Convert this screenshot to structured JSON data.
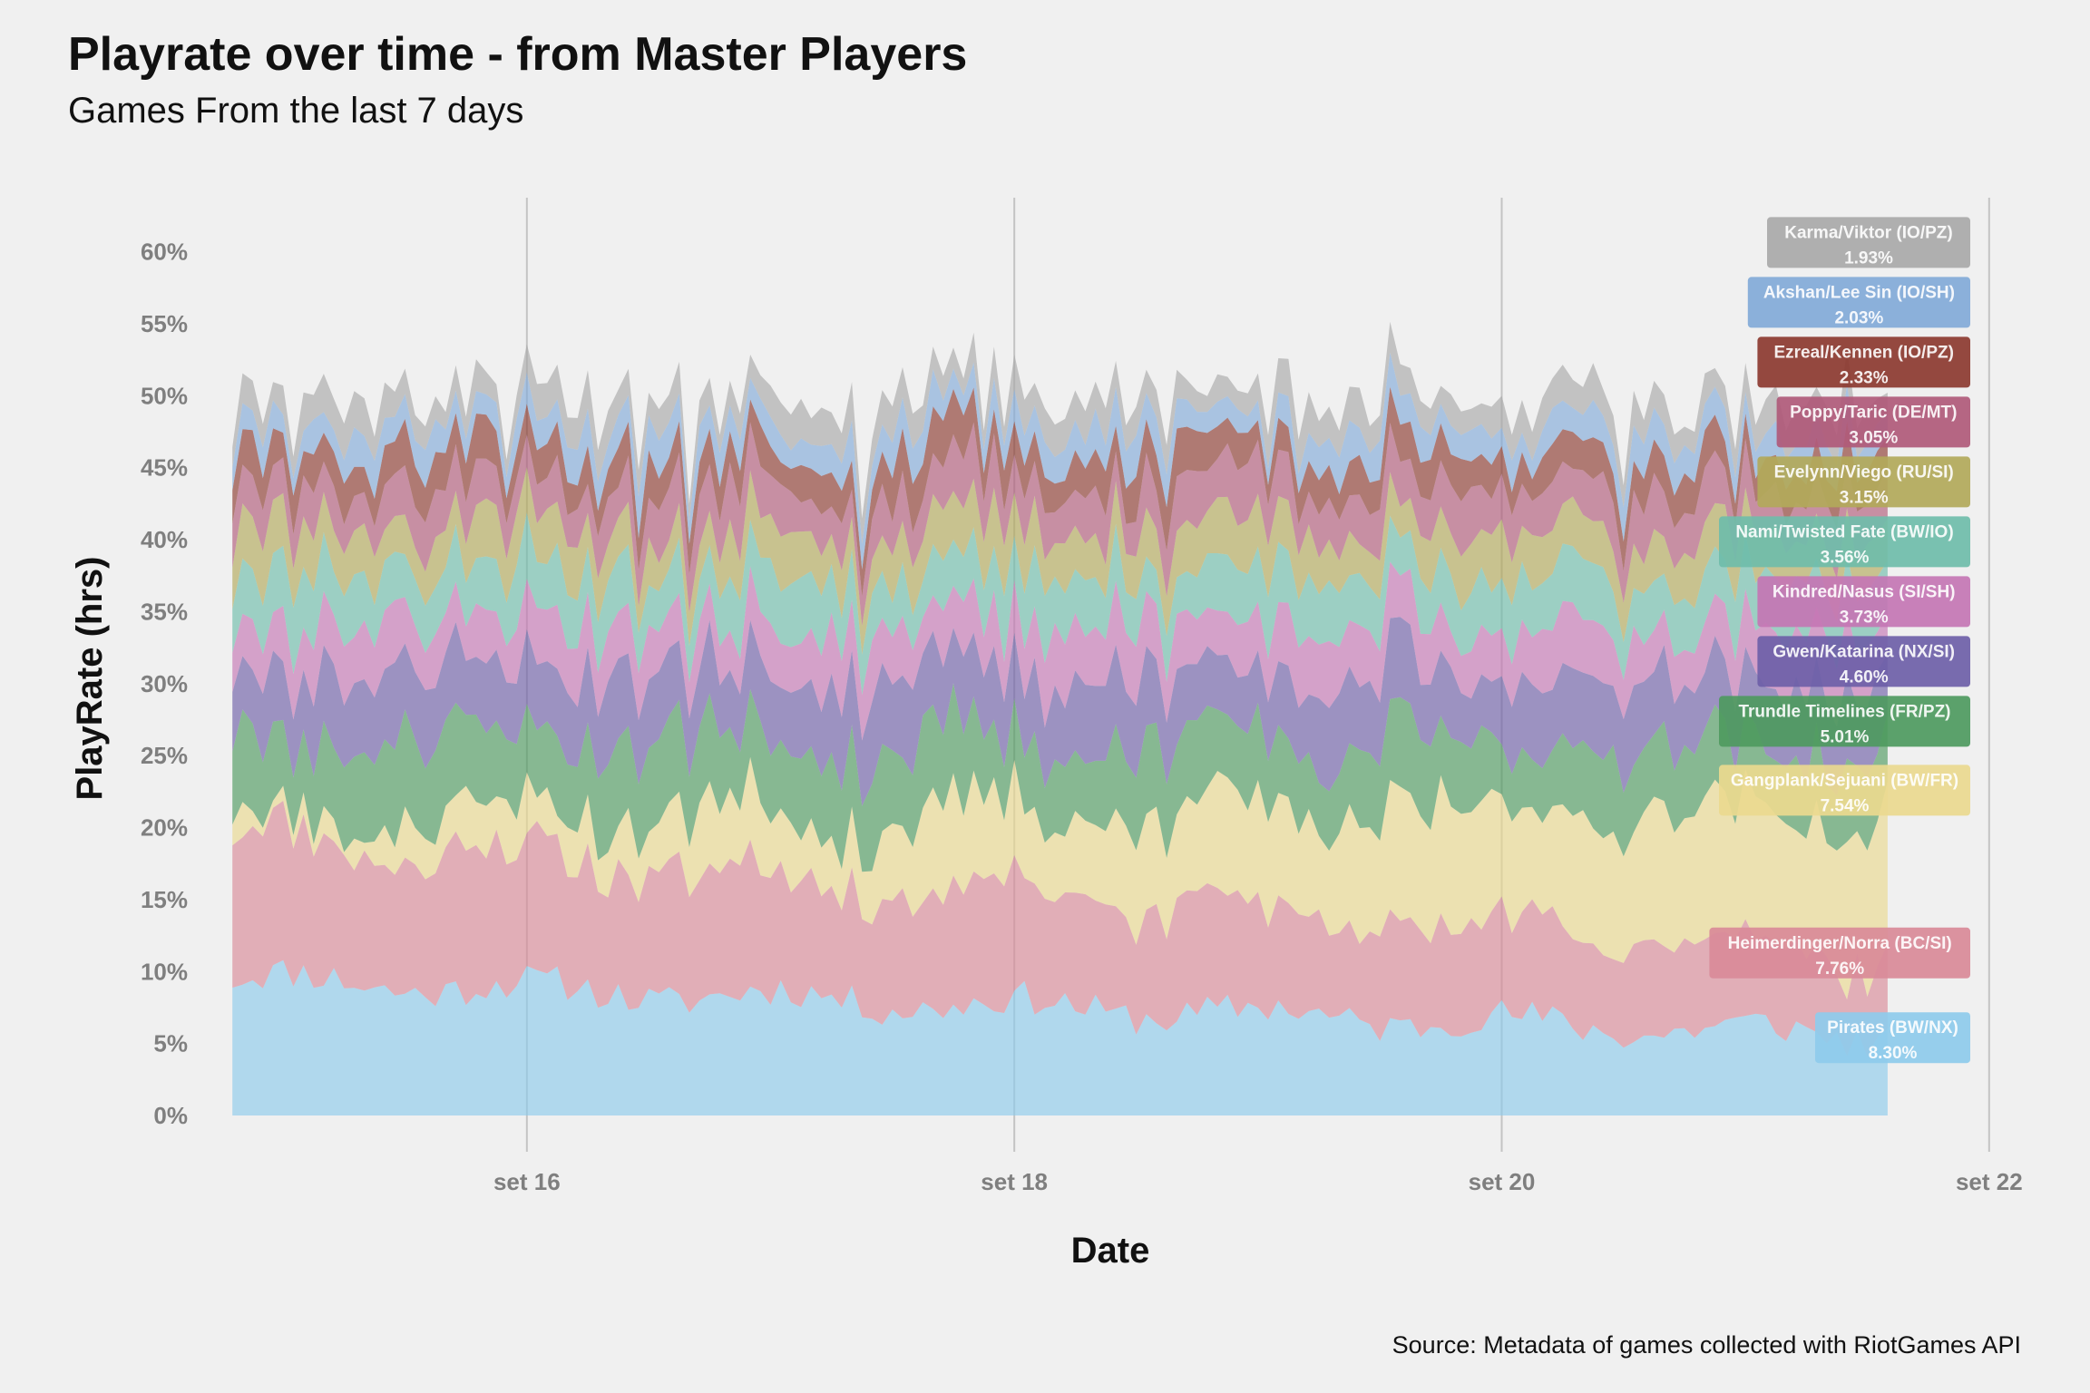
{
  "title": "Playrate over time - from Master Players",
  "subtitle": "Games From the last 7 days",
  "caption": "Source: Metadata of games collected with RiotGames API",
  "chart_data": {
    "type": "area",
    "stacked": true,
    "xlabel": "Date",
    "ylabel": "PlayRate (hrs)",
    "x_ticks": [
      {
        "day": 16,
        "label": "set 16"
      },
      {
        "day": 18,
        "label": "set 18"
      },
      {
        "day": 20,
        "label": "set 20"
      },
      {
        "day": 22,
        "label": "set 22"
      }
    ],
    "y_ticks": [
      "0%",
      "5%",
      "10%",
      "15%",
      "20%",
      "25%",
      "30%",
      "35%",
      "40%",
      "45%",
      "50%",
      "55%",
      "60%"
    ],
    "xlim": [
      "set 14 18:00",
      "set 22 06:00"
    ],
    "ylim": [
      0,
      0.63
    ],
    "grid": {
      "vertical_major": true,
      "horizontal": false
    },
    "x_start": "set 14 19:00",
    "x_end": "set 21 14:00",
    "x_step_hours": 1,
    "series": [
      {
        "name": "Pirates (BW/NX)",
        "label": "Pirates (BW/NX)",
        "share": "8.30%",
        "color": "#8ecbeb",
        "base": 0.095,
        "end": 0.055,
        "jitter": 0.012,
        "seed": 11
      },
      {
        "name": "Heimerdinger/Norra (BC/SI)",
        "label": "Heimerdinger/Norra (BC/SI)",
        "share": "7.76%",
        "color": "#d98a98",
        "base": 0.1,
        "end": 0.055,
        "jitter": 0.012,
        "seed": 23
      },
      {
        "name": "Gangplank/Sejuani (BW/FR)",
        "label": "Gangplank/Sejuani (BW/FR)",
        "share": "7.54%",
        "color": "#ead98f",
        "base": 0.015,
        "end": 0.1,
        "jitter": 0.014,
        "seed": 37
      },
      {
        "name": "Trundle Timelines (FR/PZ)",
        "label": "Trundle Timelines (FR/PZ)",
        "share": "5.01%",
        "color": "#4e9a60",
        "base": 0.055,
        "end": 0.045,
        "jitter": 0.01,
        "seed": 41
      },
      {
        "name": "Gwen/Katarina (NX/SI)",
        "label": "Gwen/Katarina (NX/SI)",
        "share": "4.60%",
        "color": "#6e5fa8",
        "base": 0.05,
        "end": 0.045,
        "jitter": 0.01,
        "seed": 53
      },
      {
        "name": "Kindred/Nasus (SI/SH)",
        "label": "Kindred/Nasus (SI/SH)",
        "share": "3.73%",
        "color": "#c476b4",
        "base": 0.035,
        "end": 0.035,
        "jitter": 0.008,
        "seed": 67
      },
      {
        "name": "Nami/Twisted Fate (BW/IO)",
        "label": "Nami/Twisted Fate (BW/IO)",
        "share": "3.56%",
        "color": "#6fbdaa",
        "base": 0.035,
        "end": 0.035,
        "jitter": 0.008,
        "seed": 71
      },
      {
        "name": "Evelynn/Viego (RU/SI)",
        "label": "Evelynn/Viego (RU/SI)",
        "share": "3.15%",
        "color": "#b2a95a",
        "base": 0.03,
        "end": 0.03,
        "jitter": 0.008,
        "seed": 83
      },
      {
        "name": "Poppy/Taric (DE/MT)",
        "label": "Poppy/Taric (DE/MT)",
        "share": "3.05%",
        "color": "#b05a7a",
        "base": 0.03,
        "end": 0.03,
        "jitter": 0.008,
        "seed": 97
      },
      {
        "name": "Ezreal/Kennen (IO/PZ)",
        "label": "Ezreal/Kennen (IO/PZ)",
        "share": "2.33%",
        "color": "#8c3a30",
        "base": 0.025,
        "end": 0.022,
        "jitter": 0.007,
        "seed": 101
      },
      {
        "name": "Akshan/Lee Sin (IO/SH)",
        "label": "Akshan/Lee Sin (IO/SH)",
        "share": "2.03%",
        "color": "#82aad8",
        "base": 0.02,
        "end": 0.02,
        "jitter": 0.006,
        "seed": 113
      },
      {
        "name": "Karma/Viktor (IO/PZ)",
        "label": "Karma/Viktor (IO/PZ)",
        "share": "1.93%",
        "color": "#a9a9a9",
        "base": 0.02,
        "end": 0.02,
        "jitter": 0.006,
        "seed": 127
      }
    ]
  }
}
